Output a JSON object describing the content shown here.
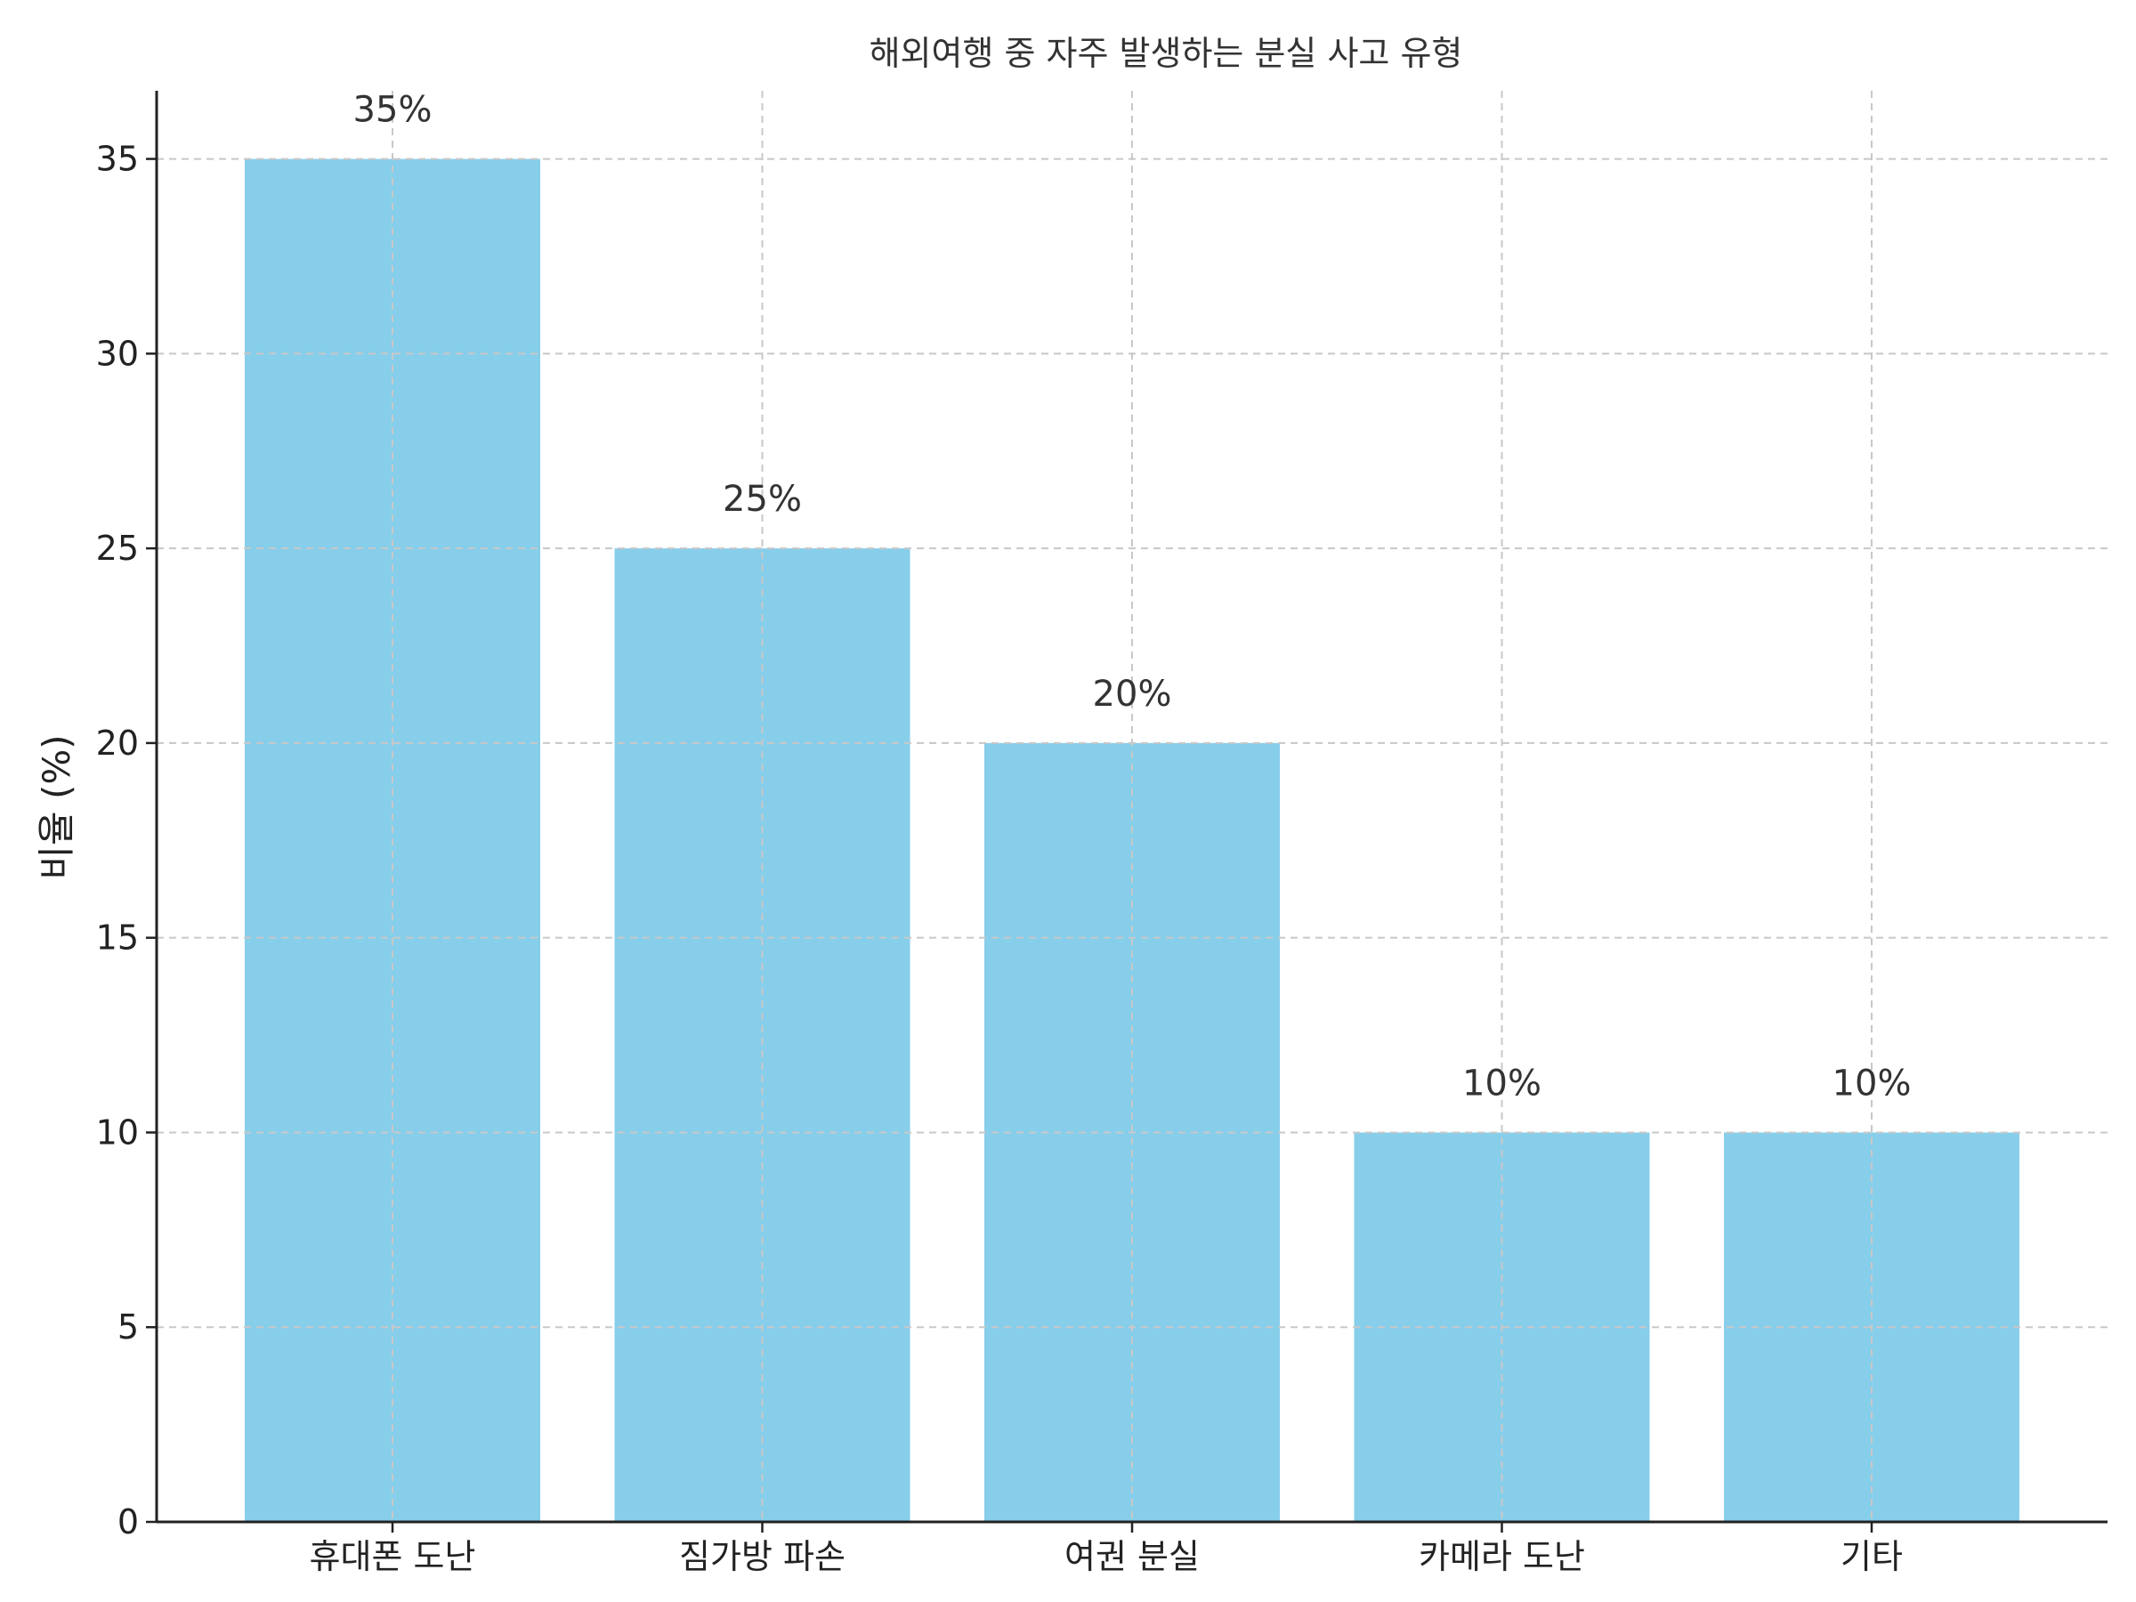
{
  "chart_data": {
    "type": "bar",
    "title": "해외여행 중 자주 발생하는 분실 사고 유형",
    "xlabel": "",
    "ylabel": "비율 (%)",
    "categories": [
      "휴대폰 도난",
      "짐가방 파손",
      "여권 분실",
      "카메라 도난",
      "기타"
    ],
    "values": [
      35,
      25,
      20,
      10,
      10
    ],
    "value_labels": [
      "35%",
      "25%",
      "20%",
      "10%",
      "10%"
    ],
    "ylim": [
      0,
      36.75
    ],
    "yticks": [
      0,
      5,
      10,
      15,
      20,
      25,
      30,
      35
    ],
    "grid": true,
    "bar_color": "#87CEEB"
  }
}
